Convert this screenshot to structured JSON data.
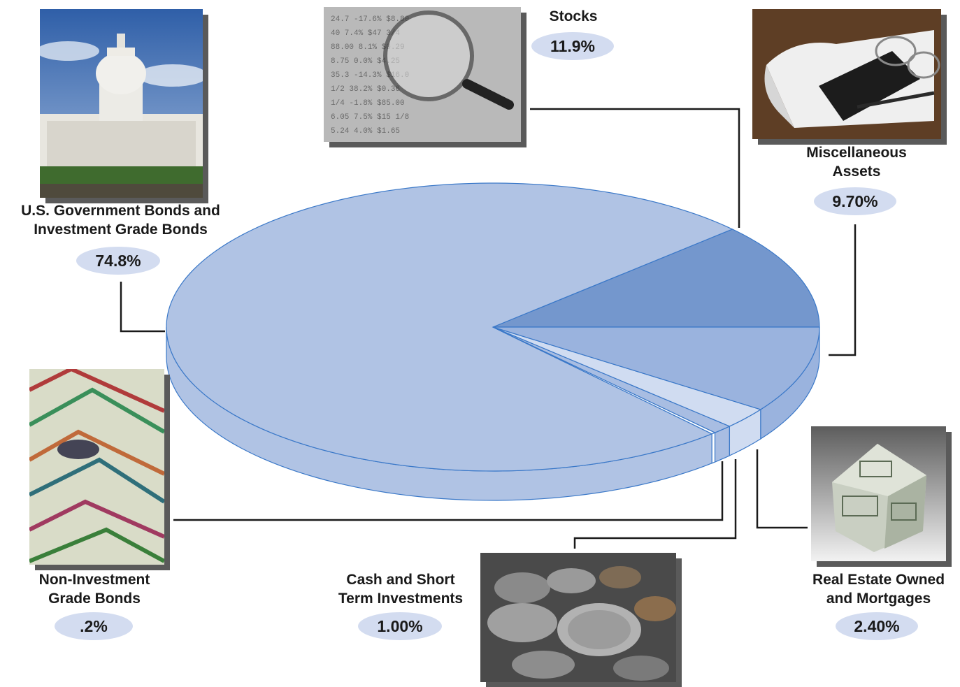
{
  "chart_data": {
    "type": "pie",
    "title": "",
    "slices": [
      {
        "label": "U.S. Government Bonds and Investment Grade Bonds",
        "value": 74.8,
        "display": "74.8%",
        "color": "#b0c3e4"
      },
      {
        "label": "Stocks",
        "value": 11.9,
        "display": "11.9%",
        "color": "#7497cd"
      },
      {
        "label": "Miscellaneous Assets",
        "value": 9.7,
        "display": "9.70%",
        "color": "#9ab3de"
      },
      {
        "label": "Real Estate Owned and Mortgages",
        "value": 2.4,
        "display": "2.40%",
        "color": "#d0dcf1"
      },
      {
        "label": "Cash and Short Term Investments",
        "value": 1.0,
        "display": "1.00%",
        "color": "#a8bde2"
      },
      {
        "label": "Non-Investment Grade Bonds",
        "value": 0.2,
        "display": ".2%",
        "color": "#ffffff"
      }
    ],
    "legend": "none",
    "style": "3d-exploded-labels-with-photos"
  },
  "labels": {
    "gov_bonds_line1": "U.S. Government Bonds and",
    "gov_bonds_line2": "Investment Grade Bonds",
    "gov_bonds_pct": "74.8%",
    "stocks": "Stocks",
    "stocks_pct": "11.9%",
    "misc_line1": "Miscellaneous",
    "misc_line2": "Assets",
    "misc_pct": "9.70%",
    "nonib_line1": "Non-Investment",
    "nonib_line2": "Grade Bonds",
    "nonib_pct": ".2%",
    "cash_line1": "Cash and Short",
    "cash_line2": "Term Investments",
    "cash_pct": "1.00%",
    "realestate_line1": "Real Estate Owned",
    "realestate_line2": "and Mortgages",
    "realestate_pct": "2.40%"
  },
  "photos": {
    "gov_bonds": "capitol-building-photo",
    "stocks": "magnifier-stock-table-photo",
    "misc": "notebook-pen-glasses-photo",
    "nonib": "bond-certificates-photo",
    "cash": "coins-photo",
    "realestate": "dollar-house-photo"
  }
}
